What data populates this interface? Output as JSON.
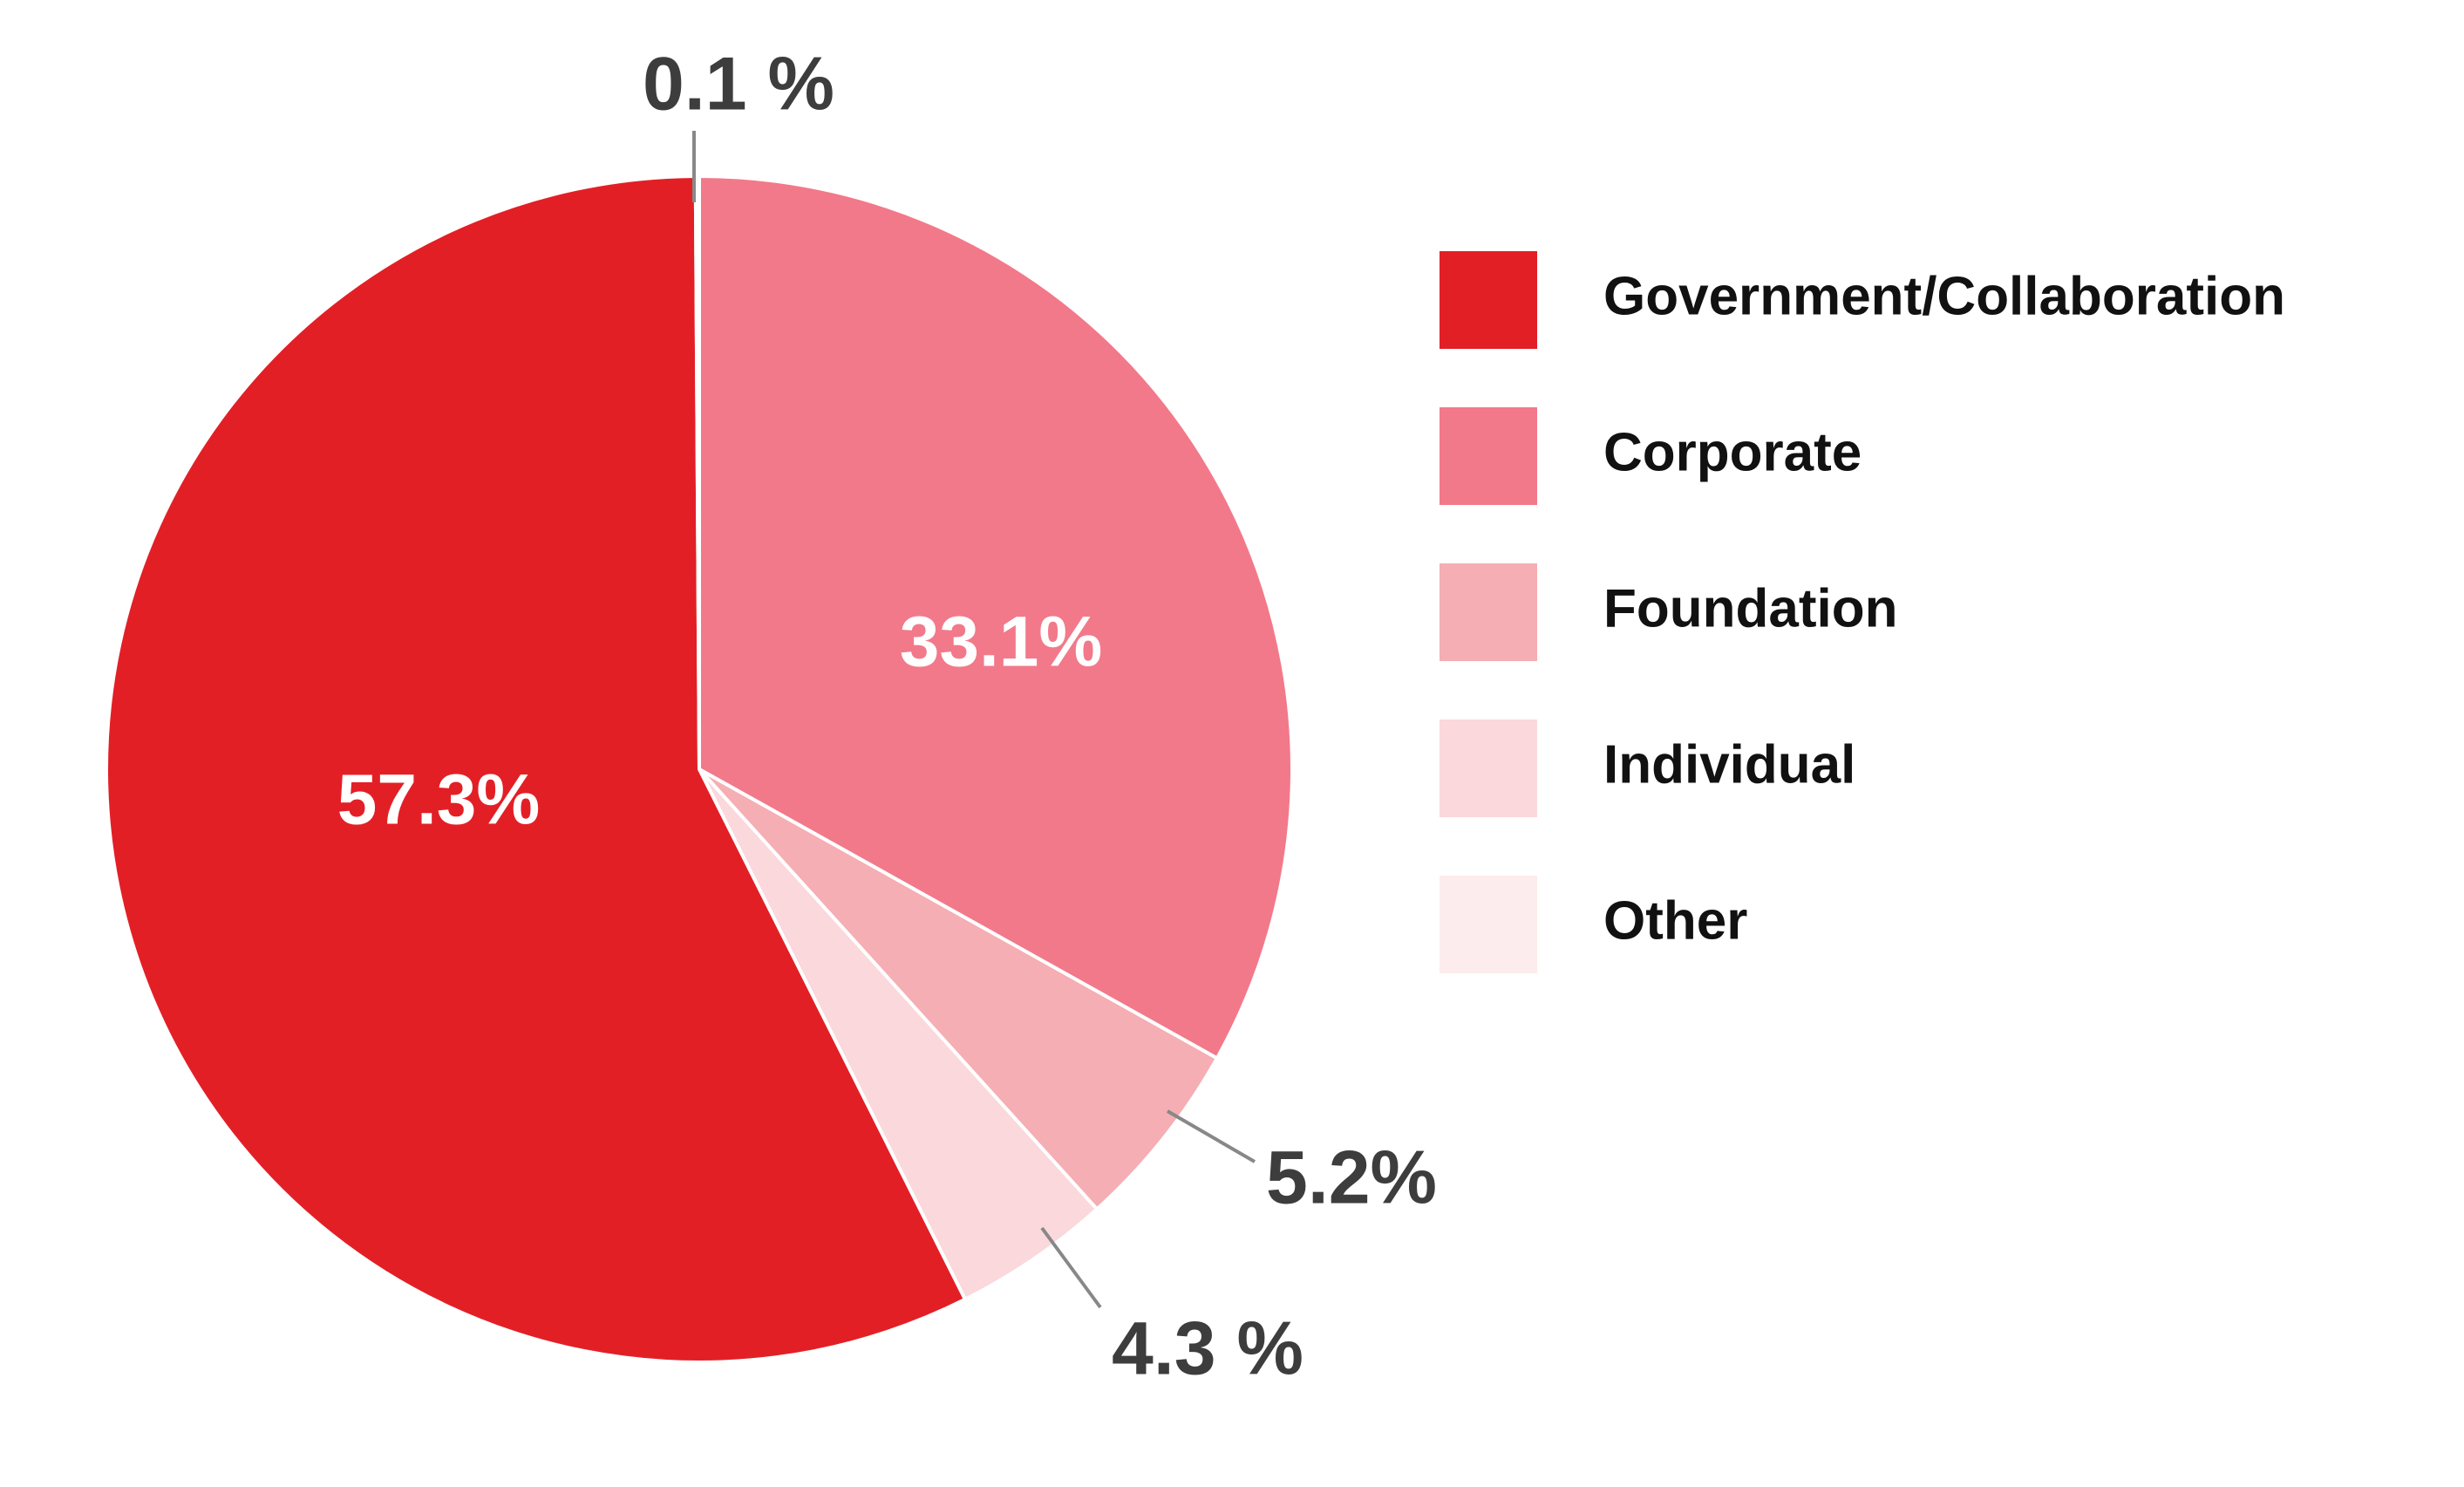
{
  "chart_data": {
    "type": "pie",
    "categories": [
      "Government/Collaboration",
      "Corporate",
      "Foundation",
      "Individual",
      "Other"
    ],
    "values": [
      57.3,
      33.1,
      5.2,
      4.3,
      0.1
    ],
    "value_labels": [
      "57.3%",
      "33.1%",
      "5.2%",
      "4.3 %",
      "0.1 %"
    ],
    "colors": [
      "#e31f26",
      "#f2798a",
      "#f5aeb3",
      "#fad8dc",
      "#fdeced"
    ],
    "legend": "right"
  }
}
